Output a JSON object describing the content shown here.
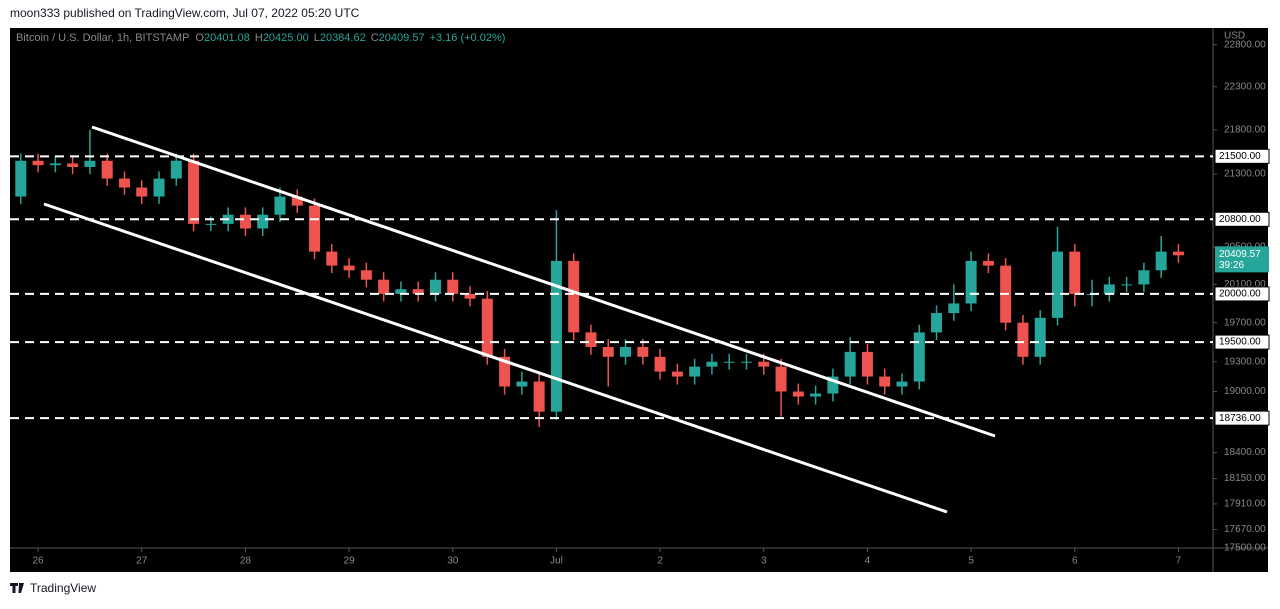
{
  "chart_data": {
    "type": "candlestick",
    "publisher": "moon333 published on TradingView.com, Jul 07, 2022 05:20 UTC",
    "symbol": "Bitcoin / U.S. Dollar, 1h, BITSTAMP",
    "ohlc_header": [
      {
        "name": "O",
        "value": 20401.08
      },
      {
        "name": "H",
        "value": {
          "value": 20425,
          "label": "20425.00"
        }
      },
      {
        "name": "L",
        "value": 20384.62
      },
      {
        "name": "C",
        "value": 20409.57
      }
    ],
    "change": "+3.16 (+0.02%)",
    "currency": "USD",
    "brand": "TradingView",
    "log_scale": true,
    "up_color": "#26a69a",
    "down_color": "#ef5350",
    "ylim": [
      17500,
      23000
    ],
    "yticks": [
      {
        "value": 22800,
        "label": "22800.00"
      },
      {
        "value": 22300,
        "label": "22300.00"
      },
      {
        "value": 21800,
        "label": "21800.00"
      },
      {
        "value": 21300,
        "label": "21300.00"
      },
      {
        "value": 20500,
        "label": "20500.00"
      },
      {
        "value": 20100,
        "label": "20100.00"
      },
      {
        "value": 19700,
        "label": "19700.00"
      },
      {
        "value": 19300,
        "label": "19300.00"
      },
      {
        "value": 19000,
        "label": "19000.00"
      },
      {
        "value": 18400,
        "label": "18400.00"
      },
      {
        "value": 18150,
        "label": "18150.00"
      },
      {
        "value": 17910,
        "label": "17910.00"
      },
      {
        "value": 17670,
        "label": "17670.00"
      },
      {
        "value": 17500,
        "label": "17500.00"
      }
    ],
    "levels": [
      {
        "value": 21500,
        "label": "21500.00"
      },
      {
        "value": 20800,
        "label": "20800.00"
      },
      {
        "value": 20000,
        "label": "20000.00"
      },
      {
        "value": 19500,
        "label": "19500.00"
      },
      {
        "value": 18736,
        "label": "18736.00"
      }
    ],
    "last_price": {
      "value": 20409.57,
      "countdown": "39:26"
    },
    "xlim": [
      -6.5,
      272
    ],
    "xticks": [
      {
        "value": 0,
        "label": "26"
      },
      {
        "value": 24,
        "label": "27"
      },
      {
        "value": 48,
        "label": "28"
      },
      {
        "value": 72,
        "label": "29"
      },
      {
        "value": 96,
        "label": "30"
      },
      {
        "value": 120,
        "label": "Jul"
      },
      {
        "value": 144,
        "label": "2"
      },
      {
        "value": 168,
        "label": "3"
      },
      {
        "value": 192,
        "label": "4"
      },
      {
        "value": 216,
        "label": "5"
      },
      {
        "value": 240,
        "label": "6"
      },
      {
        "value": 264,
        "label": "7"
      }
    ],
    "x": [
      -4,
      0,
      4,
      8,
      12,
      16,
      20,
      24,
      28,
      32,
      36,
      40,
      44,
      48,
      52,
      56,
      60,
      64,
      68,
      72,
      76,
      80,
      84,
      88,
      92,
      96,
      100,
      104,
      108,
      112,
      116,
      120,
      124,
      128,
      132,
      136,
      140,
      144,
      148,
      152,
      156,
      160,
      164,
      168,
      172,
      176,
      180,
      184,
      188,
      192,
      196,
      200,
      204,
      208,
      212,
      216,
      220,
      224,
      228,
      232,
      236,
      240,
      244,
      248,
      252,
      256,
      260,
      264
    ],
    "open": [
      21050,
      21450,
      21400,
      21420,
      21380,
      21450,
      21250,
      21150,
      21050,
      21250,
      21450,
      20750,
      20750,
      20850,
      20700,
      20850,
      21050,
      20950,
      20450,
      20300,
      20250,
      20150,
      20000,
      20050,
      20000,
      20150,
      20000,
      19950,
      19350,
      19050,
      19100,
      18800,
      20350,
      19600,
      19450,
      19350,
      19450,
      19350,
      19200,
      19150,
      19250,
      19300,
      19300,
      19300,
      19250,
      19000,
      18950,
      18980,
      19150,
      19400,
      19150,
      19050,
      19100,
      19600,
      19800,
      19900,
      20350,
      20300,
      19700,
      19350,
      19750,
      20450,
      20000,
      20000,
      20100,
      20100,
      20250,
      20450
    ],
    "high": [
      21530,
      21530,
      21500,
      21500,
      21800,
      21530,
      21330,
      21230,
      21330,
      21530,
      21530,
      20830,
      20930,
      20930,
      20930,
      21150,
      21130,
      21030,
      20530,
      20380,
      20330,
      20230,
      20130,
      20130,
      20230,
      20230,
      20080,
      20030,
      19430,
      19200,
      19180,
      20900,
      20430,
      19680,
      19530,
      19530,
      19530,
      19430,
      19280,
      19330,
      19380,
      19380,
      19380,
      19380,
      19330,
      19080,
      19060,
      19230,
      19550,
      19480,
      19230,
      19180,
      19680,
      19880,
      20100,
      20450,
      20430,
      20380,
      19780,
      19830,
      20720,
      20530,
      20150,
      20180,
      20180,
      20330,
      20620,
      20530
    ],
    "low": [
      20970,
      21320,
      21320,
      21300,
      21300,
      21170,
      21070,
      20970,
      20970,
      21170,
      20670,
      20670,
      20670,
      20620,
      20620,
      20770,
      20870,
      20370,
      20220,
      20170,
      20070,
      19920,
      19920,
      19920,
      19920,
      19920,
      19870,
      19270,
      18970,
      18970,
      18650,
      18720,
      19520,
      19370,
      19050,
      19270,
      19270,
      19120,
      19070,
      19070,
      19170,
      19220,
      19220,
      19170,
      18750,
      18870,
      18870,
      18900,
      19070,
      19070,
      18970,
      18970,
      19020,
      19520,
      19720,
      19820,
      20220,
      19620,
      19270,
      19270,
      19670,
      19870,
      19870,
      19920,
      20020,
      20020,
      20170,
      20330
    ],
    "close": [
      21450,
      21400,
      21420,
      21380,
      21450,
      21250,
      21150,
      21050,
      21250,
      21450,
      20750,
      20750,
      20850,
      20700,
      20850,
      21050,
      20950,
      20450,
      20300,
      20250,
      20150,
      20000,
      20050,
      20000,
      20150,
      20000,
      19950,
      19350,
      19050,
      19100,
      18800,
      20350,
      19600,
      19450,
      19350,
      19450,
      19350,
      19200,
      19150,
      19250,
      19300,
      19300,
      19300,
      19250,
      19000,
      18950,
      18980,
      19150,
      19400,
      19150,
      19050,
      19100,
      19600,
      19800,
      19900,
      20350,
      20300,
      19700,
      19350,
      19750,
      20450,
      20000,
      20000,
      20100,
      20100,
      20250,
      20450,
      20410
    ]
  }
}
